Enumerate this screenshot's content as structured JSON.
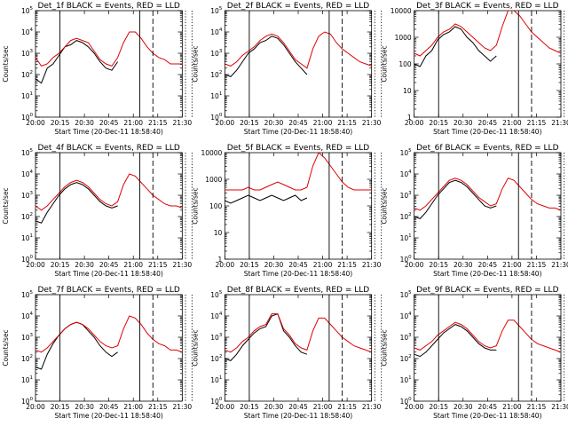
{
  "colors": {
    "black_series": "#000000",
    "red_series": "#e00000"
  },
  "x_ticks": [
    "20:00",
    "20:15",
    "20:30",
    "20:45",
    "21:00",
    "21:15",
    "21:30"
  ],
  "xlabel": "Start Time (20-Dec-11 18:58:40)",
  "ylabel": "Counts/sec",
  "chart_data": [
    {
      "type": "line",
      "title": "Det_1f BLACK = Events, RED = LLD",
      "ytick_style": "exp",
      "ylim_log": [
        0,
        5
      ],
      "x": [
        0,
        4,
        8,
        12,
        16,
        20,
        24,
        28,
        32,
        36,
        40,
        44,
        48,
        52,
        56,
        60,
        64,
        68,
        72,
        76,
        80,
        84,
        88,
        92,
        96,
        100
      ],
      "series": [
        {
          "name": "Events",
          "color": "#000000",
          "log10": [
            1.8,
            1.6,
            2.3,
            2.5,
            2.9,
            3.3,
            3.4,
            3.6,
            3.5,
            3.3,
            3.0,
            2.6,
            2.3,
            2.2,
            2.6,
            null,
            null,
            null,
            null,
            null,
            null,
            null,
            null,
            null,
            null,
            null
          ]
        },
        {
          "name": "LLD",
          "color": "#e00000",
          "log10": [
            2.8,
            2.4,
            2.5,
            2.8,
            3.0,
            3.3,
            3.6,
            3.7,
            3.6,
            3.5,
            3.1,
            2.7,
            2.5,
            2.4,
            2.8,
            3.5,
            4.0,
            4.0,
            3.7,
            3.3,
            3.0,
            2.8,
            2.7,
            2.5,
            2.5,
            2.5
          ]
        }
      ],
      "solid_lines_min": [
        15,
        64
      ],
      "dashed_lines_min": [
        72
      ],
      "dotted_lines_min": [
        92,
        96
      ]
    },
    {
      "type": "line",
      "title": "Det_2f BLACK = Events, RED = LLD",
      "ytick_style": "exp",
      "ylim_log": [
        0,
        5
      ],
      "x": [
        0,
        4,
        8,
        12,
        16,
        20,
        24,
        28,
        32,
        36,
        40,
        44,
        48,
        52,
        56,
        60,
        64,
        68,
        72,
        76,
        80,
        84,
        88,
        92,
        96,
        100
      ],
      "series": [
        {
          "name": "Events",
          "color": "#000000",
          "log10": [
            2.0,
            1.9,
            2.2,
            2.6,
            3.0,
            3.2,
            3.5,
            3.6,
            3.8,
            3.7,
            3.4,
            3.0,
            2.6,
            2.3,
            2.0,
            null,
            null,
            null,
            null,
            null,
            null,
            null,
            null,
            null,
            null,
            null
          ]
        },
        {
          "name": "LLD",
          "color": "#e00000",
          "log10": [
            2.5,
            2.4,
            2.6,
            2.9,
            3.1,
            3.3,
            3.6,
            3.8,
            3.9,
            3.8,
            3.5,
            3.1,
            2.7,
            2.5,
            2.3,
            3.2,
            3.8,
            4.0,
            3.9,
            3.5,
            3.2,
            3.0,
            2.8,
            2.6,
            2.5,
            2.4
          ]
        }
      ],
      "solid_lines_min": [
        15,
        64
      ],
      "dashed_lines_min": [
        72
      ],
      "dotted_lines_min": [
        92,
        96
      ]
    },
    {
      "type": "line",
      "title": "Det_3f BLACK = Events, RED = LLD",
      "ytick_style": "plain",
      "ylim_log": [
        0,
        4
      ],
      "ytick_labels": [
        "1",
        "10",
        "100",
        "1000",
        "10000"
      ],
      "x": [
        0,
        4,
        8,
        12,
        16,
        20,
        24,
        28,
        32,
        36,
        40,
        44,
        48,
        52,
        56,
        60,
        64,
        68,
        72,
        76,
        80,
        84,
        88,
        92,
        96,
        100
      ],
      "series": [
        {
          "name": "Events",
          "color": "#000000",
          "log10": [
            2.0,
            1.9,
            2.3,
            2.5,
            2.9,
            3.1,
            3.2,
            3.4,
            3.3,
            3.0,
            2.8,
            2.5,
            2.3,
            2.1,
            2.3,
            null,
            null,
            null,
            null,
            null,
            null,
            null,
            null,
            null,
            null,
            null
          ]
        },
        {
          "name": "LLD",
          "color": "#e00000",
          "log10": [
            2.4,
            2.3,
            2.5,
            2.7,
            3.0,
            3.2,
            3.3,
            3.5,
            3.4,
            3.2,
            3.0,
            2.8,
            2.6,
            2.5,
            2.7,
            3.4,
            4.0,
            4.0,
            3.8,
            3.5,
            3.2,
            3.0,
            2.8,
            2.6,
            2.5,
            2.4
          ]
        }
      ],
      "solid_lines_min": [
        15,
        64
      ],
      "dashed_lines_min": [
        72
      ],
      "dotted_lines_min": [
        92,
        96
      ]
    },
    {
      "type": "line",
      "title": "Det_4f BLACK = Events, RED = LLD",
      "ytick_style": "exp",
      "ylim_log": [
        0,
        5
      ],
      "x": [
        0,
        4,
        8,
        12,
        16,
        20,
        24,
        28,
        32,
        36,
        40,
        44,
        48,
        52,
        56,
        60,
        64,
        68,
        72,
        76,
        80,
        84,
        88,
        92,
        96,
        100
      ],
      "series": [
        {
          "name": "Events",
          "color": "#000000",
          "log10": [
            1.8,
            1.7,
            2.2,
            2.6,
            3.0,
            3.3,
            3.5,
            3.6,
            3.5,
            3.3,
            3.0,
            2.7,
            2.5,
            2.4,
            2.5,
            null,
            null,
            null,
            null,
            null,
            null,
            null,
            null,
            null,
            null,
            null
          ]
        },
        {
          "name": "LLD",
          "color": "#e00000",
          "log10": [
            2.5,
            2.3,
            2.5,
            2.8,
            3.1,
            3.4,
            3.6,
            3.7,
            3.6,
            3.4,
            3.1,
            2.8,
            2.6,
            2.5,
            2.7,
            3.5,
            4.0,
            3.9,
            3.6,
            3.3,
            3.0,
            2.8,
            2.6,
            2.5,
            2.5,
            2.4
          ]
        }
      ],
      "solid_lines_min": [
        15,
        64
      ],
      "dashed_lines_min": [
        72
      ],
      "dotted_lines_min": [
        92,
        96
      ]
    },
    {
      "type": "line",
      "title": "Det_5f BLACK = Events, RED = LLD",
      "ytick_style": "plain",
      "ylim_log": [
        0,
        4
      ],
      "ytick_labels": [
        "1",
        "10",
        "100",
        "1000",
        "10000"
      ],
      "x": [
        0,
        4,
        8,
        12,
        16,
        20,
        24,
        28,
        32,
        36,
        40,
        44,
        48,
        52,
        56,
        60,
        64,
        68,
        72,
        76,
        80,
        84,
        88,
        92,
        96,
        100
      ],
      "series": [
        {
          "name": "Events",
          "color": "#000000",
          "log10": [
            2.2,
            2.1,
            2.2,
            2.3,
            2.4,
            2.3,
            2.2,
            2.3,
            2.4,
            2.3,
            2.2,
            2.3,
            2.4,
            2.2,
            2.3,
            null,
            null,
            null,
            null,
            null,
            null,
            null,
            null,
            null,
            null,
            null
          ]
        },
        {
          "name": "LLD",
          "color": "#e00000",
          "log10": [
            2.6,
            2.6,
            2.6,
            2.6,
            2.7,
            2.6,
            2.6,
            2.7,
            2.8,
            2.9,
            2.8,
            2.7,
            2.6,
            2.6,
            2.7,
            3.5,
            4.0,
            3.8,
            3.5,
            3.2,
            2.9,
            2.7,
            2.6,
            2.6,
            2.6,
            2.6
          ]
        }
      ],
      "solid_lines_min": [
        15,
        64
      ],
      "dashed_lines_min": [
        72
      ],
      "dotted_lines_min": [
        92,
        96
      ]
    },
    {
      "type": "line",
      "title": "Det_6f BLACK = Events, RED = LLD",
      "ytick_style": "exp",
      "ylim_log": [
        0,
        5
      ],
      "x": [
        0,
        4,
        8,
        12,
        16,
        20,
        24,
        28,
        32,
        36,
        40,
        44,
        48,
        52,
        56,
        60,
        64,
        68,
        72,
        76,
        80,
        84,
        88,
        92,
        96,
        100
      ],
      "series": [
        {
          "name": "Events",
          "color": "#000000",
          "log10": [
            2.0,
            1.9,
            2.2,
            2.6,
            3.0,
            3.3,
            3.6,
            3.7,
            3.6,
            3.4,
            3.1,
            2.8,
            2.5,
            2.4,
            2.5,
            null,
            null,
            null,
            null,
            null,
            null,
            null,
            null,
            null,
            null,
            null
          ]
        },
        {
          "name": "LLD",
          "color": "#e00000",
          "log10": [
            2.4,
            2.3,
            2.5,
            2.8,
            3.1,
            3.4,
            3.7,
            3.8,
            3.7,
            3.5,
            3.2,
            2.9,
            2.7,
            2.5,
            2.6,
            3.3,
            3.8,
            3.7,
            3.4,
            3.1,
            2.8,
            2.6,
            2.5,
            2.4,
            2.4,
            2.3
          ]
        }
      ],
      "solid_lines_min": [
        15,
        64
      ],
      "dashed_lines_min": [
        72
      ],
      "dotted_lines_min": [
        92,
        96
      ]
    },
    {
      "type": "line",
      "title": "Det_7f BLACK = Events, RED = LLD",
      "ytick_style": "exp",
      "ylim_log": [
        0,
        5
      ],
      "x": [
        0,
        4,
        8,
        12,
        16,
        20,
        24,
        28,
        32,
        36,
        40,
        44,
        48,
        52,
        56,
        60,
        64,
        68,
        72,
        76,
        80,
        84,
        88,
        92,
        96,
        100
      ],
      "series": [
        {
          "name": "Events",
          "color": "#000000",
          "log10": [
            1.6,
            1.5,
            2.2,
            2.7,
            3.1,
            3.4,
            3.6,
            3.7,
            3.6,
            3.3,
            3.0,
            2.6,
            2.3,
            2.1,
            2.3,
            null,
            null,
            null,
            null,
            null,
            null,
            null,
            null,
            null,
            null,
            null
          ]
        },
        {
          "name": "LLD",
          "color": "#e00000",
          "log10": [
            2.4,
            2.3,
            2.5,
            2.8,
            3.1,
            3.4,
            3.6,
            3.7,
            3.6,
            3.4,
            3.1,
            2.8,
            2.6,
            2.5,
            2.6,
            3.4,
            4.0,
            3.9,
            3.6,
            3.2,
            2.9,
            2.7,
            2.6,
            2.4,
            2.4,
            2.3
          ]
        }
      ],
      "solid_lines_min": [
        15,
        64
      ],
      "dashed_lines_min": [
        72
      ],
      "dotted_lines_min": [
        92,
        96
      ]
    },
    {
      "type": "line",
      "title": "Det_8f BLACK = Events, RED = LLD",
      "ytick_style": "exp",
      "ylim_log": [
        0,
        5
      ],
      "x": [
        0,
        4,
        8,
        12,
        16,
        20,
        24,
        28,
        32,
        36,
        40,
        44,
        48,
        52,
        56,
        60,
        64,
        68,
        72,
        76,
        80,
        84,
        88,
        92,
        96,
        100
      ],
      "series": [
        {
          "name": "Events",
          "color": "#000000",
          "log10": [
            2.0,
            1.9,
            2.2,
            2.6,
            2.9,
            3.2,
            3.4,
            3.5,
            4.0,
            4.1,
            3.3,
            3.0,
            2.6,
            2.3,
            2.2,
            null,
            null,
            null,
            null,
            null,
            null,
            null,
            null,
            null,
            null,
            null
          ]
        },
        {
          "name": "LLD",
          "color": "#e00000",
          "log10": [
            2.4,
            2.3,
            2.5,
            2.8,
            3.0,
            3.3,
            3.5,
            3.6,
            4.1,
            4.1,
            3.4,
            3.1,
            2.7,
            2.5,
            2.4,
            3.3,
            3.9,
            3.9,
            3.6,
            3.3,
            3.0,
            2.8,
            2.6,
            2.5,
            2.4,
            2.3
          ]
        }
      ],
      "solid_lines_min": [
        15,
        64
      ],
      "dashed_lines_min": [
        72
      ],
      "dotted_lines_min": [
        92,
        96
      ]
    },
    {
      "type": "line",
      "title": "Det_9f BLACK = Events, RED = LLD",
      "ytick_style": "exp",
      "ylim_log": [
        0,
        5
      ],
      "x": [
        0,
        4,
        8,
        12,
        16,
        20,
        24,
        28,
        32,
        36,
        40,
        44,
        48,
        52,
        56,
        60,
        64,
        68,
        72,
        76,
        80,
        84,
        88,
        92,
        96,
        100
      ],
      "series": [
        {
          "name": "Events",
          "color": "#000000",
          "log10": [
            2.2,
            2.1,
            2.3,
            2.6,
            2.9,
            3.2,
            3.4,
            3.6,
            3.5,
            3.3,
            3.0,
            2.7,
            2.5,
            2.4,
            2.4,
            null,
            null,
            null,
            null,
            null,
            null,
            null,
            null,
            null,
            null,
            null
          ]
        },
        {
          "name": "LLD",
          "color": "#e00000",
          "log10": [
            2.5,
            2.4,
            2.6,
            2.8,
            3.1,
            3.3,
            3.5,
            3.7,
            3.6,
            3.4,
            3.1,
            2.8,
            2.6,
            2.5,
            2.6,
            3.3,
            3.8,
            3.8,
            3.5,
            3.2,
            2.9,
            2.7,
            2.6,
            2.5,
            2.4,
            2.3
          ]
        }
      ],
      "solid_lines_min": [
        15,
        64
      ],
      "dashed_lines_min": [
        72
      ],
      "dotted_lines_min": [
        92,
        96
      ]
    }
  ]
}
